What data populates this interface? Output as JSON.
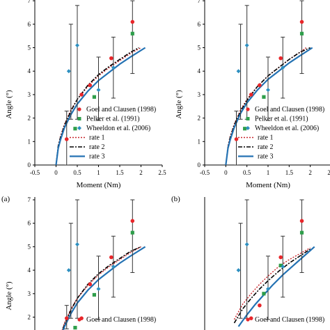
{
  "chart_data": [
    {
      "type": "scatter",
      "panel_label": "",
      "xlabel": "Moment (Nm)",
      "ylabel": "Angle (°)",
      "xlim": [
        -0.5,
        2.5
      ],
      "ylim": [
        0,
        7
      ],
      "xticks": [
        "-0.5",
        "0",
        "0.5",
        "1",
        "1.5",
        "2",
        "2.5"
      ],
      "yticks": [
        "0",
        "1",
        "2",
        "3",
        "4",
        "5",
        "6",
        "7"
      ],
      "legend": [
        "Goel and Clausen (1998)",
        "Pelker et al. (1991)",
        "Wheeldon et al. (2006)",
        "rate 1",
        "rate 2",
        "rate 3"
      ],
      "legend_position": "bottom-right",
      "points": {
        "goel": [
          [
            0.25,
            1.1
          ],
          [
            0.6,
            3.0
          ],
          [
            0.8,
            3.4
          ],
          [
            1.3,
            4.55
          ],
          [
            1.8,
            6.1
          ]
        ],
        "pelker": [
          [
            0.45,
            1.55
          ],
          [
            0.9,
            2.9
          ],
          [
            1.8,
            5.6
          ]
        ],
        "wheeldon": [
          [
            0.3,
            4.0
          ],
          [
            0.5,
            5.1
          ],
          [
            1.0,
            3.2
          ],
          [
            1.35,
            4.15
          ]
        ]
      },
      "error_bars": [
        [
          0.25,
          0.0,
          2.3
        ],
        [
          0.35,
          1.95,
          6.0
        ],
        [
          0.5,
          1.95,
          6.8
        ],
        [
          1.0,
          1.9,
          4.6
        ],
        [
          1.35,
          2.85,
          5.45
        ],
        [
          1.8,
          3.9,
          7.0
        ]
      ],
      "series": [
        {
          "name": "rate 1",
          "x": [
            0.0,
            0.05,
            0.1,
            0.2,
            0.35,
            0.5,
            0.75,
            1.0,
            1.25,
            1.5,
            1.75,
            2.0
          ],
          "values": [
            0.0,
            0.8,
            1.2,
            1.75,
            2.35,
            2.8,
            3.35,
            3.8,
            4.15,
            4.45,
            4.75,
            5.0
          ]
        },
        {
          "name": "rate 2",
          "x": [
            0.0,
            0.05,
            0.1,
            0.2,
            0.35,
            0.5,
            0.75,
            1.0,
            1.25,
            1.5,
            1.75,
            1.95
          ],
          "values": [
            0.0,
            0.8,
            1.15,
            1.7,
            2.3,
            2.8,
            3.4,
            3.85,
            4.2,
            4.5,
            4.8,
            5.0
          ]
        },
        {
          "name": "rate 3",
          "x": [
            0.0,
            0.05,
            0.1,
            0.2,
            0.35,
            0.5,
            0.75,
            1.0,
            1.25,
            1.5,
            1.75,
            2.1
          ],
          "values": [
            0.0,
            0.7,
            1.05,
            1.6,
            2.15,
            2.6,
            3.15,
            3.6,
            3.95,
            4.3,
            4.6,
            5.0
          ]
        }
      ]
    },
    {
      "type": "scatter",
      "panel_label": "",
      "xlabel": "Moment (Nm)",
      "ylabel": "Angle (°)",
      "xlim": [
        -0.5,
        2.5
      ],
      "ylim": [
        0,
        7
      ],
      "xticks": [
        "-0.5",
        "0",
        "0.5",
        "1",
        "1.5",
        "2",
        "2.5"
      ],
      "yticks": [
        "0",
        "1",
        "2",
        "3",
        "4",
        "5",
        "6",
        "7"
      ],
      "legend": [
        "Goel and Clausen (1998)",
        "Pelker et al. (1991)",
        "Wheeldon et al. (2006)",
        "rate 1",
        "rate 2",
        "rate 3"
      ],
      "legend_position": "bottom-right",
      "points": {
        "goel": [
          [
            0.25,
            1.1
          ],
          [
            0.6,
            3.0
          ],
          [
            0.8,
            3.4
          ],
          [
            1.3,
            4.55
          ],
          [
            1.8,
            6.1
          ]
        ],
        "pelker": [
          [
            0.45,
            1.55
          ],
          [
            0.9,
            2.9
          ],
          [
            1.8,
            5.6
          ]
        ],
        "wheeldon": [
          [
            0.3,
            4.0
          ],
          [
            0.5,
            5.1
          ],
          [
            1.0,
            3.2
          ],
          [
            1.35,
            4.15
          ]
        ]
      },
      "error_bars": [
        [
          0.25,
          0.0,
          2.3
        ],
        [
          0.35,
          1.95,
          6.0
        ],
        [
          0.5,
          1.95,
          6.8
        ],
        [
          1.0,
          1.9,
          4.6
        ],
        [
          1.35,
          2.85,
          5.45
        ],
        [
          1.8,
          3.9,
          7.0
        ]
      ],
      "series": [
        {
          "name": "rate 1",
          "x": [
            0.0,
            0.05,
            0.1,
            0.2,
            0.35,
            0.5,
            0.75,
            1.0,
            1.25,
            1.5,
            1.75,
            1.9
          ],
          "values": [
            0.0,
            0.8,
            1.2,
            1.75,
            2.35,
            2.8,
            3.35,
            3.8,
            4.15,
            4.5,
            4.8,
            5.0
          ]
        },
        {
          "name": "rate 2",
          "x": [
            0.0,
            0.05,
            0.1,
            0.2,
            0.35,
            0.5,
            0.75,
            1.0,
            1.25,
            1.5,
            1.75,
            2.0
          ],
          "values": [
            0.0,
            0.75,
            1.15,
            1.7,
            2.3,
            2.75,
            3.35,
            3.8,
            4.15,
            4.5,
            4.8,
            5.0
          ]
        },
        {
          "name": "rate 3",
          "x": [
            0.0,
            0.05,
            0.1,
            0.2,
            0.35,
            0.5,
            0.75,
            1.0,
            1.25,
            1.5,
            1.75,
            2.05
          ],
          "values": [
            0.0,
            0.7,
            1.05,
            1.6,
            2.2,
            2.65,
            3.2,
            3.65,
            4.0,
            4.35,
            4.65,
            5.0
          ]
        }
      ]
    },
    {
      "type": "scatter",
      "panel_label": "(a)",
      "xlabel": "",
      "ylabel": "Angle (°)",
      "xlim": [
        -0.5,
        2.5
      ],
      "ylim": [
        1.5,
        7
      ],
      "yticks": [
        "2",
        "3",
        "4",
        "5",
        "6",
        "7"
      ],
      "legend": [
        "Goel and Clausen (1998)"
      ],
      "legend_position": "bottom-right",
      "points": {
        "goel": [
          [
            0.25,
            1.95
          ],
          [
            0.6,
            1.95
          ],
          [
            0.8,
            3.4
          ],
          [
            1.3,
            4.55
          ],
          [
            1.8,
            6.1
          ]
        ],
        "pelker": [
          [
            0.45,
            1.55
          ],
          [
            0.9,
            2.95
          ],
          [
            1.8,
            5.6
          ]
        ],
        "wheeldon": [
          [
            0.3,
            4.0
          ],
          [
            0.5,
            5.1
          ],
          [
            1.0,
            3.2
          ],
          [
            1.35,
            4.15
          ]
        ]
      },
      "error_bars": [
        [
          0.25,
          1.5,
          2.5
        ],
        [
          0.35,
          1.95,
          6.0
        ],
        [
          0.5,
          1.95,
          7.0
        ],
        [
          1.0,
          1.9,
          4.6
        ],
        [
          1.35,
          2.85,
          5.45
        ],
        [
          1.8,
          3.9,
          7.0
        ]
      ],
      "series": [
        {
          "name": "rate 1",
          "x": [
            0.1,
            0.2,
            0.35,
            0.5,
            0.75,
            1.0,
            1.25,
            1.5,
            1.75,
            2.0
          ],
          "values": [
            1.2,
            1.75,
            2.35,
            2.8,
            3.35,
            3.8,
            4.15,
            4.45,
            4.75,
            5.0
          ]
        },
        {
          "name": "rate 2",
          "x": [
            0.1,
            0.2,
            0.35,
            0.5,
            0.75,
            1.0,
            1.25,
            1.5,
            1.75,
            2.0
          ],
          "values": [
            1.15,
            1.7,
            2.3,
            2.8,
            3.4,
            3.85,
            4.2,
            4.5,
            4.8,
            5.0
          ]
        },
        {
          "name": "rate 3",
          "x": [
            0.1,
            0.2,
            0.35,
            0.5,
            0.75,
            1.0,
            1.25,
            1.5,
            1.75,
            2.1
          ],
          "values": [
            1.05,
            1.6,
            2.15,
            2.6,
            3.15,
            3.6,
            3.95,
            4.3,
            4.6,
            5.0
          ]
        }
      ]
    },
    {
      "type": "scatter",
      "panel_label": "(b)",
      "xlabel": "",
      "ylabel": "",
      "xlim": [
        -0.5,
        2.5
      ],
      "ylim": [
        1.5,
        7
      ],
      "yticks": [],
      "legend": [
        "Goel and Clausen (1998)"
      ],
      "legend_position": "bottom-right",
      "points": {
        "goel": [
          [
            0.6,
            1.95
          ],
          [
            0.8,
            2.5
          ],
          [
            1.3,
            4.55
          ],
          [
            1.8,
            6.1
          ]
        ],
        "pelker": [
          [
            0.9,
            3.0
          ],
          [
            1.3,
            4.2
          ],
          [
            1.8,
            5.6
          ]
        ],
        "wheeldon": [
          [
            0.3,
            4.0
          ],
          [
            0.5,
            5.1
          ],
          [
            1.0,
            3.2
          ],
          [
            1.35,
            4.15
          ]
        ]
      },
      "error_bars": [
        [
          0.35,
          1.95,
          6.0
        ],
        [
          0.5,
          1.95,
          7.0
        ],
        [
          1.0,
          1.9,
          4.6
        ],
        [
          1.35,
          2.85,
          5.45
        ],
        [
          1.8,
          3.9,
          7.0
        ]
      ],
      "series": [
        {
          "name": "rate 1",
          "x": [
            0.2,
            0.4,
            0.6,
            0.8,
            1.0,
            1.25,
            1.5,
            1.75,
            2.0
          ],
          "values": [
            1.9,
            2.55,
            3.0,
            3.4,
            3.75,
            4.15,
            4.45,
            4.7,
            4.95
          ]
        },
        {
          "name": "rate 2",
          "x": [
            0.2,
            0.4,
            0.6,
            0.8,
            1.0,
            1.25,
            1.5,
            1.75,
            2.0
          ],
          "values": [
            1.75,
            2.35,
            2.8,
            3.2,
            3.55,
            3.95,
            4.3,
            4.6,
            4.9
          ]
        },
        {
          "name": "rate 3",
          "x": [
            0.3,
            0.5,
            0.7,
            0.9,
            1.1,
            1.35,
            1.6,
            1.85,
            2.1
          ],
          "values": [
            1.6,
            2.1,
            2.55,
            2.95,
            3.35,
            3.8,
            4.2,
            4.6,
            5.0
          ]
        }
      ]
    }
  ],
  "colors": {
    "goel": "#e8262a",
    "pelker": "#2e9e4a",
    "wheeldon": "#2d8fc0",
    "rate1": "#c8252b",
    "rate2": "#000000",
    "rate3": "#2472b3",
    "errorbar": "#333333"
  }
}
